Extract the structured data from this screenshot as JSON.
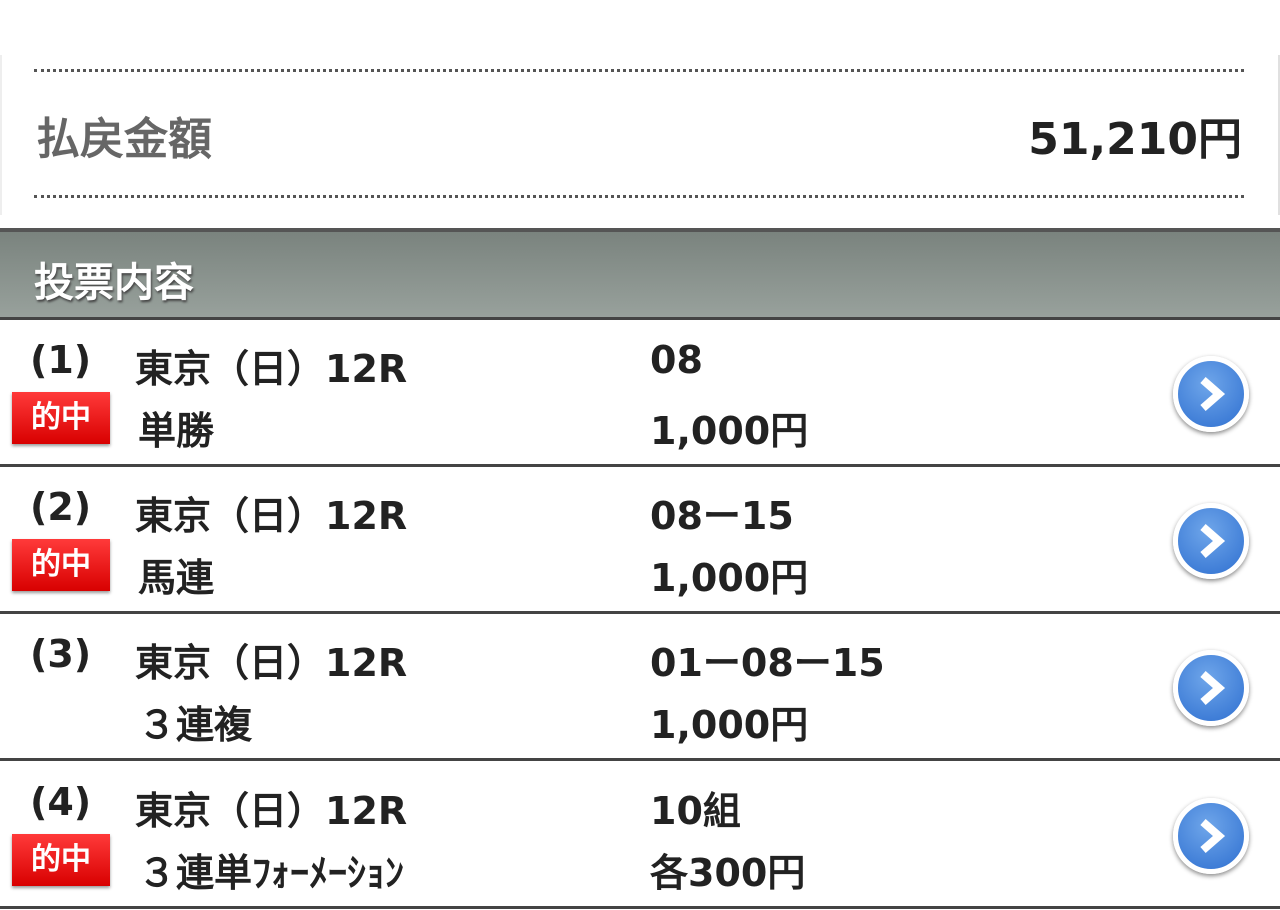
{
  "summary": {
    "label": "払戻金額",
    "amount": "51,210円"
  },
  "section": {
    "title": "投票内容"
  },
  "badge_label": "的中",
  "bets": [
    {
      "index": "(1)",
      "race": "東京（日）12R",
      "type": "単勝",
      "selection": "08",
      "amount": "1,000円",
      "hit": true
    },
    {
      "index": "(2)",
      "race": "東京（日）12R",
      "type": "馬連",
      "selection": "08ー15",
      "amount": "1,000円",
      "hit": true
    },
    {
      "index": "(3)",
      "race": "東京（日）12R",
      "type": "３連複",
      "selection": "01ー08ー15",
      "amount": "1,000円",
      "hit": false
    },
    {
      "index": "(4)",
      "race": "東京（日）12R",
      "type": "３連単ﾌｫｰﾒｰｼｮﾝ",
      "selection": "10組",
      "amount": "各300円",
      "hit": true
    }
  ],
  "colors": {
    "badge": "#e00000",
    "arrow": "#3a7bd5",
    "header": "#8a938e"
  }
}
